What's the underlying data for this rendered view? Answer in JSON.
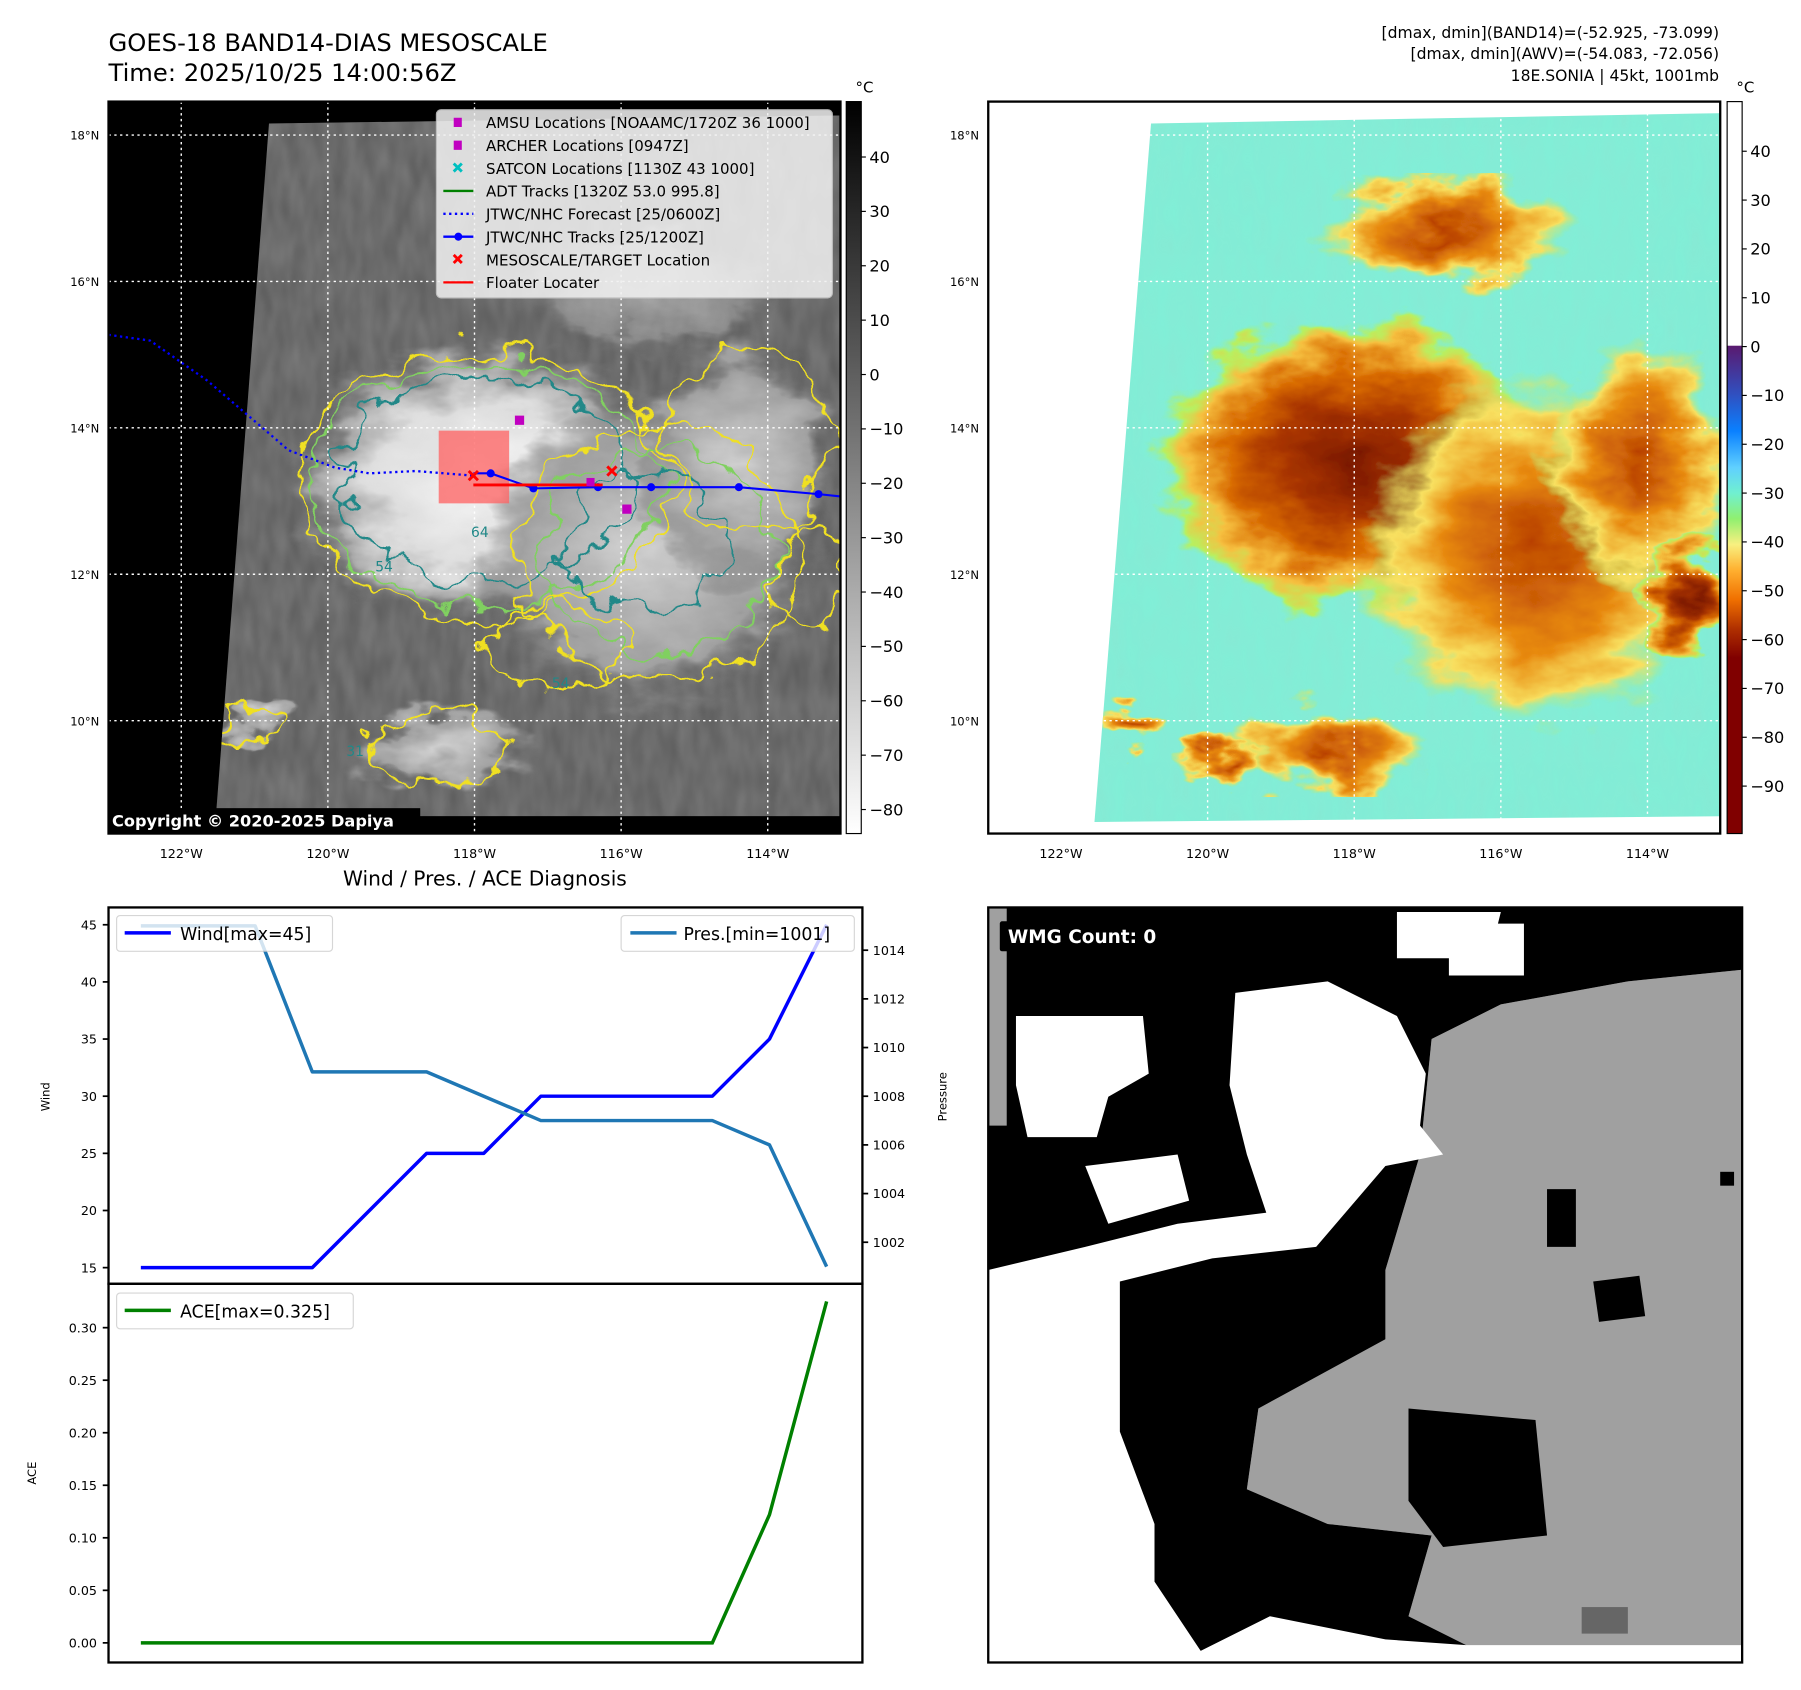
{
  "header": {
    "title_line1": "GOES-18 BAND14-DIAS MESOSCALE",
    "title_line2": "Time: 2025/10/25 14:00:56Z",
    "stats_line1": "[dmax, dmin](BAND14)=(-52.925, -73.099)",
    "stats_line2": "[dmax, dmin](AWV)=(-54.083, -72.056)",
    "stats_line3": "18E.SONIA | 45kt, 1001mb"
  },
  "maps": {
    "lat_labels": [
      "18°N",
      "16°N",
      "14°N",
      "12°N",
      "10°N"
    ],
    "lat_values": [
      18,
      16,
      14,
      12,
      10
    ],
    "lon_labels": [
      "122°W",
      "120°W",
      "118°W",
      "116°W",
      "114°W"
    ],
    "lon_values": [
      122,
      120,
      118,
      116,
      114
    ],
    "copyright": "Copyright © 2020-2025 Dapiya",
    "unit": "°C",
    "gray_colorbar_ticks": [
      "40",
      "30",
      "20",
      "10",
      "0",
      "−10",
      "−20",
      "−30",
      "−40",
      "−50",
      "−60",
      "−70",
      "−80"
    ],
    "color_colorbar_ticks": [
      "40",
      "30",
      "20",
      "10",
      "0",
      "−10",
      "−20",
      "−30",
      "−40",
      "−50",
      "−60",
      "−70",
      "−80",
      "−90"
    ],
    "contour_labels": [
      "64",
      "54",
      "54",
      "31"
    ],
    "legend": [
      {
        "label": "AMSU Locations [NOAAMC/1720Z 36 1000]",
        "color": "#c000c0",
        "marker": "square"
      },
      {
        "label": "ARCHER Locations [0947Z]",
        "color": "#c000c0",
        "marker": "square"
      },
      {
        "label": "SATCON Locations [1130Z 43 1000]",
        "color": "#00c0c0",
        "marker": "x"
      },
      {
        "label": "ADT Tracks [1320Z 53.0 995.8]",
        "color": "#008000",
        "marker": "line"
      },
      {
        "label": "JTWC/NHC Forecast [25/0600Z]",
        "color": "#0000ff",
        "marker": "dotted"
      },
      {
        "label": "JTWC/NHC Tracks [25/1200Z]",
        "color": "#0000ff",
        "marker": "line-dot"
      },
      {
        "label": "MESOSCALE/TARGET Location",
        "color": "#ff0000",
        "marker": "x"
      },
      {
        "label": "Floater Locater",
        "color": "#ff0000",
        "marker": "line"
      }
    ]
  },
  "wmg": {
    "label": "WMG Count: 0"
  },
  "chart_data": [
    {
      "type": "line",
      "title": "Wind / Pres. / ACE Diagnosis",
      "x": [
        0,
        1,
        2,
        3,
        4,
        5,
        6,
        7,
        8,
        9,
        10,
        11,
        12
      ],
      "ylabel": "Wind",
      "y2label": "Pressure",
      "ylim": [
        14,
        46
      ],
      "y2lim": [
        1000.9,
        1015.4
      ],
      "yticks": [
        15,
        20,
        25,
        30,
        35,
        40,
        45
      ],
      "y2ticks": [
        1002,
        1004,
        1006,
        1008,
        1010,
        1012,
        1014
      ],
      "series": [
        {
          "name": "Wind[max=45]",
          "axis": "left",
          "color": "#0000ff",
          "values": [
            15,
            15,
            15,
            15,
            20,
            25,
            25,
            30,
            30,
            30,
            30,
            35,
            45
          ]
        },
        {
          "name": "Pres.[min=1001]",
          "axis": "right",
          "color": "#1f77b4",
          "values": [
            1015,
            1015,
            1015,
            1009,
            1009,
            1009,
            1008,
            1007,
            1007,
            1007,
            1007,
            1006,
            1001
          ]
        }
      ],
      "legend": [
        "top-left",
        "top-right"
      ]
    },
    {
      "type": "line",
      "x": [
        0,
        1,
        2,
        3,
        4,
        5,
        6,
        7,
        8,
        9,
        10,
        11,
        12
      ],
      "ylabel": "ACE",
      "ylim": [
        -0.015,
        0.34
      ],
      "yticks": [
        "0.00",
        "0.05",
        "0.10",
        "0.15",
        "0.20",
        "0.25",
        "0.30"
      ],
      "series": [
        {
          "name": "ACE[max=0.325]",
          "color": "#008000",
          "values": [
            0,
            0,
            0,
            0,
            0,
            0,
            0,
            0,
            0,
            0,
            0,
            0.122,
            0.325
          ]
        }
      ],
      "legend": "top-left"
    }
  ]
}
